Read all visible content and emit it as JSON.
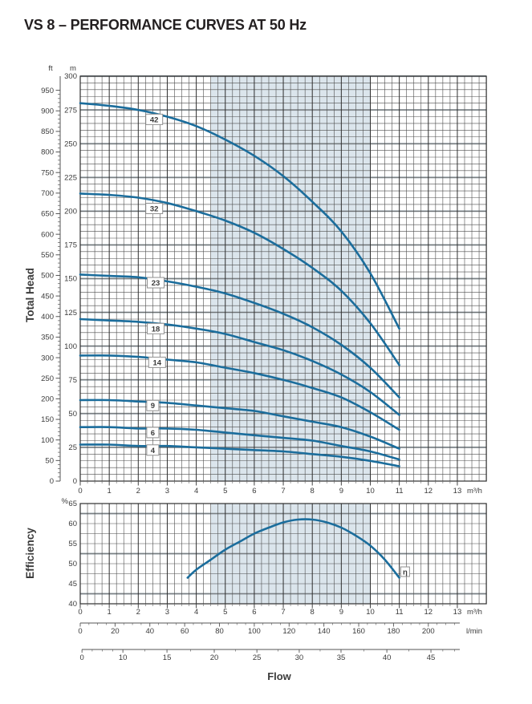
{
  "title": "VS 8 – PERFORMANCE CURVES AT 50 Hz",
  "colors": {
    "curve": "#1b6d9c",
    "shade": "#dbe5ec",
    "grid_minor": "#4d4d4d",
    "grid_major_gray": "#a9b2b8",
    "axis": "#2e2e2e",
    "text": "#3b3b3b",
    "title": "#231f20",
    "label_box_border": "#8f8f8f"
  },
  "chart_data": [
    {
      "id": "total-head",
      "type": "line",
      "ylabel": "Total Head",
      "xlabel": "Flow",
      "x_unit": "m³/h",
      "y_unit_inner": "m",
      "y_unit_outer": "ft",
      "xlim": [
        0,
        14
      ],
      "x_ticks": [
        0,
        1,
        2,
        3,
        4,
        5,
        6,
        7,
        8,
        9,
        10,
        11,
        12,
        13
      ],
      "ylim_m": [
        0,
        300
      ],
      "y_ticks_m": [
        0,
        25,
        50,
        75,
        100,
        125,
        150,
        175,
        200,
        225,
        250,
        275,
        300
      ],
      "ylim_ft": [
        0,
        950
      ],
      "ft_label_step": 50,
      "ft_minor_step": 10,
      "grid": "on",
      "shaded_flow_range": [
        4.5,
        10
      ],
      "x": [
        0,
        1,
        2,
        3,
        4,
        5,
        6,
        7,
        8,
        9,
        10,
        11
      ],
      "series": [
        {
          "name": "42",
          "stages": 42,
          "values": [
            280,
            278,
            275,
            270,
            263,
            253,
            241,
            226,
            207,
            185,
            154,
            113
          ],
          "label_at": [
            2.55,
            268
          ]
        },
        {
          "name": "32",
          "stages": 32,
          "values": [
            213,
            212,
            210,
            206,
            200,
            193,
            184,
            172,
            158,
            141,
            117,
            86
          ],
          "label_at": [
            2.55,
            202
          ]
        },
        {
          "name": "23",
          "stages": 23,
          "values": [
            153,
            152,
            151,
            148,
            144,
            139,
            132,
            124,
            114,
            101,
            84,
            62
          ],
          "label_at": [
            2.6,
            147
          ]
        },
        {
          "name": "18",
          "stages": 18,
          "values": [
            120,
            119,
            118,
            116,
            113,
            109,
            103,
            97,
            89,
            79,
            66,
            49
          ],
          "label_at": [
            2.6,
            113
          ]
        },
        {
          "name": "14",
          "stages": 14,
          "values": [
            93,
            93,
            92,
            90,
            88,
            84,
            80,
            75,
            69,
            62,
            51,
            38
          ],
          "label_at": [
            2.65,
            88
          ]
        },
        {
          "name": "9",
          "stages": 9,
          "values": [
            60,
            60,
            59,
            58,
            56,
            54,
            52,
            48,
            44,
            40,
            33,
            24
          ],
          "label_at": [
            2.5,
            56
          ]
        },
        {
          "name": "6",
          "stages": 6,
          "values": [
            40,
            40,
            39,
            39,
            38,
            36,
            34,
            32,
            30,
            26,
            22,
            16
          ],
          "label_at": [
            2.5,
            36
          ]
        },
        {
          "name": "4",
          "stages": 4,
          "values": [
            27,
            27,
            26,
            26,
            25,
            24,
            23,
            22,
            20,
            18,
            15,
            11
          ],
          "label_at": [
            2.5,
            23
          ]
        }
      ]
    },
    {
      "id": "efficiency",
      "type": "line",
      "ylabel": "Efficiency",
      "y_unit": "%",
      "x_unit": "m³/h",
      "ylim": [
        40,
        65
      ],
      "y_ticks": [
        40,
        45,
        50,
        55,
        60,
        65
      ],
      "x_ticks": [
        0,
        1,
        2,
        3,
        4,
        5,
        6,
        7,
        8,
        9,
        10,
        11,
        12,
        13
      ],
      "grid": "on",
      "shaded_flow_range": [
        4.5,
        10
      ],
      "curve_label": "η",
      "curve_label_at": [
        11.2,
        48
      ],
      "x": [
        3.7,
        4,
        4.5,
        5,
        5.5,
        6,
        6.5,
        7,
        7.5,
        8,
        8.5,
        9,
        9.5,
        10,
        10.5,
        11
      ],
      "values": [
        46.5,
        48.5,
        51,
        53.5,
        55.5,
        57.5,
        59,
        60.3,
        61,
        61,
        60.3,
        59,
        57,
        54.5,
        51,
        46.5
      ]
    }
  ],
  "flow_scales": {
    "m3h_unit": "m³/h",
    "lmin": {
      "unit": "l/min",
      "labels": [
        0,
        20,
        40,
        60,
        80,
        100,
        120,
        140,
        160,
        180,
        200
      ],
      "minor_step": 5
    },
    "gpm": {
      "labels": [
        0,
        10,
        15,
        20,
        25,
        30,
        35,
        40,
        45
      ],
      "pos_m3h": [
        0.06,
        1.47,
        2.99,
        4.62,
        6.09,
        7.55,
        8.99,
        10.57,
        12.09
      ]
    },
    "flow_label": "Flow"
  }
}
